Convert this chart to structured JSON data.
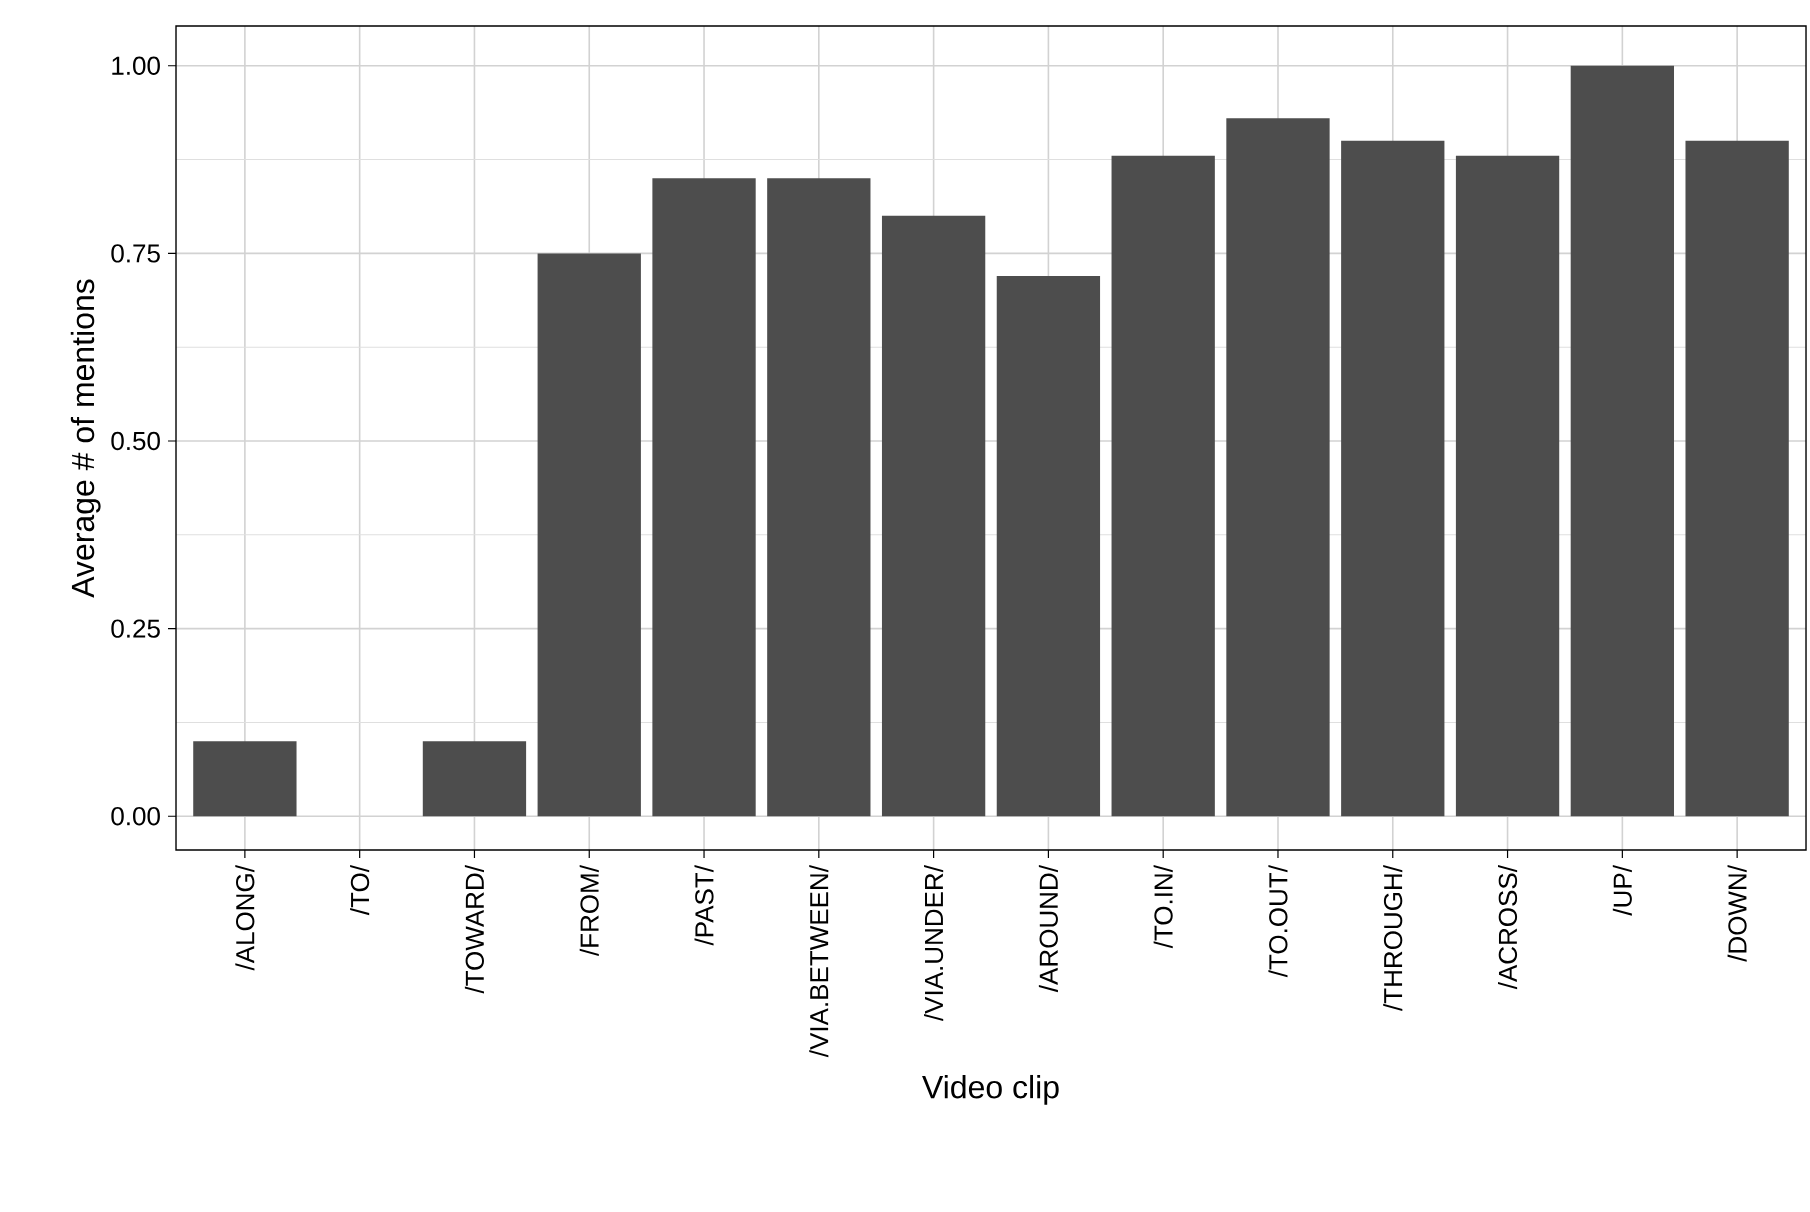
{
  "chart_data": {
    "type": "bar",
    "xlabel": "Video clip",
    "ylabel": "Average # of mentions",
    "categories": [
      "/ALONG/",
      "/TO/",
      "/TOWARD/",
      "/FROM/",
      "/PAST/",
      "/VIA.BETWEEN/",
      "/VIA.UNDER/",
      "/AROUND/",
      "/TO.IN/",
      "/TO.OUT/",
      "/THROUGH/",
      "/ACROSS/",
      "/UP/",
      "/DOWN/"
    ],
    "values": [
      0.1,
      0,
      0.1,
      0.75,
      0.85,
      0.85,
      0.8,
      0.72,
      0.88,
      0.93,
      0.9,
      0.88,
      1.0,
      0.9
    ],
    "color": "#4d4d4d",
    "ylim": [
      -0.045,
      1.053
    ],
    "yticks": [
      {
        "value": 0,
        "label": "0.00"
      },
      {
        "value": 0.25,
        "label": "0.25"
      },
      {
        "value": 0.5,
        "label": "0.50"
      },
      {
        "value": 0.75,
        "label": "0.75"
      },
      {
        "value": 1,
        "label": "1.00"
      }
    ],
    "grid": true
  }
}
